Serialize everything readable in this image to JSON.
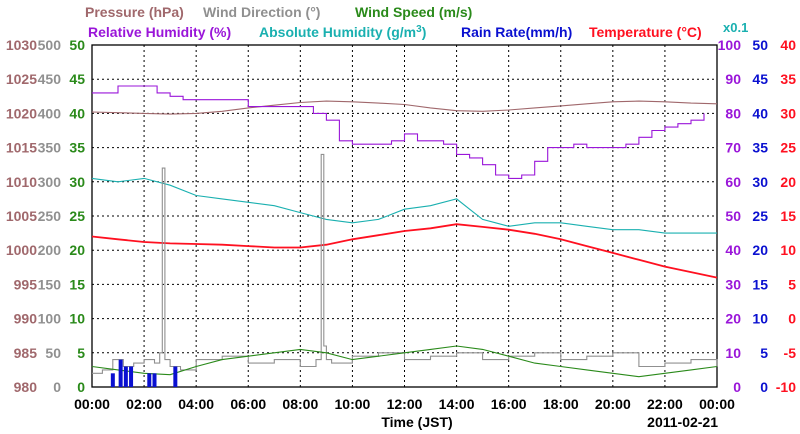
{
  "chart_data": {
    "type": "line",
    "date": "2011-02-21",
    "xlabel": "Time (JST)",
    "x_ticks": [
      "00:00",
      "02:00",
      "04:00",
      "06:00",
      "08:00",
      "10:00",
      "12:00",
      "14:00",
      "16:00",
      "18:00",
      "20:00",
      "22:00",
      "00:00"
    ],
    "legend": {
      "pressure": "Pressure (hPa)",
      "wind_direction": "Wind Direction (°)",
      "wind_speed": "Wind Speed (m/s)",
      "relative_humidity": "Relative Humidity (%)",
      "absolute_humidity_prefix": "Absolute Humidity (g/m",
      "absolute_humidity_sup": "3",
      "absolute_humidity_suffix": ")",
      "rain_rate": "Rain Rate(mm/h)",
      "temperature_prefix": "Temperature (",
      "temperature_unit": "°C",
      "temperature_suffix": ")",
      "abs_humidity_scale": "x0.1"
    },
    "axes": {
      "pressure": {
        "ticks": [
          "1030",
          "1025",
          "1020",
          "1015",
          "1010",
          "1005",
          "1000",
          "995",
          "990",
          "985",
          "980"
        ],
        "range": [
          980,
          1030
        ]
      },
      "wind_direction": {
        "ticks": [
          "500",
          "450",
          "400",
          "350",
          "300",
          "250",
          "200",
          "150",
          "100",
          "50",
          "0"
        ],
        "range": [
          0,
          500
        ]
      },
      "wind_speed": {
        "ticks": [
          "50",
          "45",
          "40",
          "35",
          "30",
          "25",
          "20",
          "15",
          "10",
          "5",
          "0"
        ],
        "range": [
          0,
          50
        ]
      },
      "relative_humidity": {
        "ticks": [
          "100",
          "90",
          "80",
          "70",
          "60",
          "50",
          "40",
          "30",
          "20",
          "10",
          "0"
        ],
        "range": [
          0,
          100
        ]
      },
      "rain_rate": {
        "ticks": [
          "50",
          "45",
          "40",
          "35",
          "30",
          "25",
          "20",
          "15",
          "10",
          "5",
          "0"
        ],
        "range": [
          0,
          50
        ]
      },
      "temperature": {
        "ticks": [
          "40",
          "35",
          "30",
          "25",
          "20",
          "15",
          "10",
          "5",
          "0",
          "-5",
          "-10"
        ],
        "range": [
          -10,
          40
        ]
      }
    },
    "colors": {
      "pressure": "#a0686c",
      "wind_direction": "#909090",
      "wind_speed": "#2a8a1a",
      "relative_humidity": "#9a16d9",
      "absolute_humidity": "#1ab0b0",
      "rain_rate": "#0a10d0",
      "temperature": "#ff1020"
    },
    "series": [
      {
        "name": "Pressure (hPa)",
        "key": "pressure",
        "x": [
          0,
          1,
          2,
          3,
          4,
          5,
          6,
          7,
          8,
          9,
          10,
          11,
          12,
          13,
          14,
          15,
          16,
          17,
          18,
          19,
          20,
          21,
          22,
          23,
          24
        ],
        "y": [
          1020.2,
          1020.1,
          1020.0,
          1019.9,
          1020.0,
          1020.3,
          1020.8,
          1021.2,
          1021.6,
          1021.8,
          1021.7,
          1021.5,
          1021.3,
          1020.8,
          1020.4,
          1020.3,
          1020.5,
          1020.8,
          1021.1,
          1021.4,
          1021.7,
          1021.8,
          1021.7,
          1021.5,
          1021.4
        ]
      },
      {
        "name": "Relative Humidity (%)",
        "key": "relative_humidity",
        "x": [
          0,
          0.5,
          1,
          1.5,
          2,
          2.5,
          3,
          3.5,
          4,
          5,
          6,
          7,
          8,
          8.5,
          9,
          9.5,
          10,
          11,
          11.5,
          12,
          12.5,
          13,
          13.5,
          14,
          14.5,
          15,
          15.5,
          16,
          16.5,
          17,
          17.5,
          18,
          18.5,
          19,
          19.5,
          20,
          20.5,
          21,
          21.5,
          22,
          22.5,
          23,
          23.5
        ],
        "y": [
          86,
          86,
          88,
          88,
          88,
          86,
          85,
          84,
          84,
          84,
          82,
          82,
          82,
          80,
          78,
          72,
          71,
          71,
          72,
          74,
          72,
          72,
          71,
          68,
          67,
          65,
          62,
          61,
          62,
          66,
          70,
          70,
          71,
          70,
          70,
          70,
          71,
          73,
          75,
          76,
          77,
          78,
          80
        ]
      },
      {
        "name": "Absolute Humidity",
        "key": "absolute_humidity",
        "x": [
          0,
          1,
          2,
          3,
          4,
          5,
          6,
          7,
          8,
          9,
          10,
          11,
          12,
          13,
          14,
          14.5,
          15,
          15.5,
          16,
          17,
          18,
          19,
          20,
          21,
          22,
          23,
          24
        ],
        "y": [
          61,
          60,
          61,
          59,
          56,
          55,
          54,
          53,
          51,
          49,
          48,
          49,
          52,
          53,
          55,
          52,
          49,
          48,
          47,
          48,
          48,
          47,
          46,
          46,
          45,
          45,
          45
        ]
      },
      {
        "name": "Temperature",
        "key": "temperature",
        "x": [
          0,
          1,
          2,
          3,
          4,
          5,
          6,
          7,
          8,
          9,
          10,
          11,
          12,
          13,
          14,
          15,
          16,
          17,
          18,
          19,
          20,
          21,
          22,
          23,
          24
        ],
        "y": [
          12,
          11.6,
          11.2,
          11,
          10.9,
          10.8,
          10.6,
          10.4,
          10.4,
          10.8,
          11.6,
          12.2,
          12.8,
          13.2,
          13.8,
          13.4,
          13,
          12.4,
          11.6,
          10.6,
          9.6,
          8.6,
          7.6,
          6.8,
          6
        ]
      },
      {
        "name": "Wind Direction (°)",
        "key": "wind_direction",
        "x": [
          0,
          0.4,
          0.8,
          1.2,
          1.6,
          2,
          2.4,
          2.6,
          2.7,
          2.8,
          3,
          3.4,
          4,
          5,
          6,
          7,
          8,
          8.6,
          8.8,
          8.9,
          9,
          9.2,
          10,
          11,
          12,
          13,
          14,
          15,
          16,
          17,
          18,
          19,
          20,
          21,
          22,
          23,
          24
        ],
        "y": [
          20,
          25,
          40,
          30,
          35,
          40,
          35,
          50,
          320,
          40,
          30,
          25,
          40,
          45,
          35,
          40,
          30,
          40,
          340,
          60,
          40,
          35,
          45,
          50,
          40,
          45,
          50,
          40,
          45,
          50,
          40,
          45,
          50,
          30,
          35,
          40,
          30
        ]
      },
      {
        "name": "Wind Speed (m/s)",
        "key": "wind_speed",
        "x": [
          0,
          1,
          2,
          3,
          4,
          5,
          6,
          7,
          8,
          9,
          10,
          11,
          12,
          13,
          14,
          15,
          16,
          17,
          18,
          19,
          20,
          21,
          22,
          23,
          24
        ],
        "y": [
          3,
          2.5,
          2,
          1.8,
          3,
          4,
          4.5,
          5,
          5.5,
          5,
          4,
          4.5,
          5,
          5.5,
          6,
          5.5,
          4.5,
          3.5,
          3,
          2.5,
          2,
          1.5,
          2,
          2.5,
          3
        ]
      },
      {
        "name": "Rain Rate(mm/h)",
        "key": "rain_rate",
        "x": [
          0.8,
          1.1,
          1.3,
          1.5,
          2.2,
          2.4,
          3.2
        ],
        "y": [
          2,
          4,
          3,
          3,
          2,
          2,
          3
        ]
      }
    ]
  }
}
